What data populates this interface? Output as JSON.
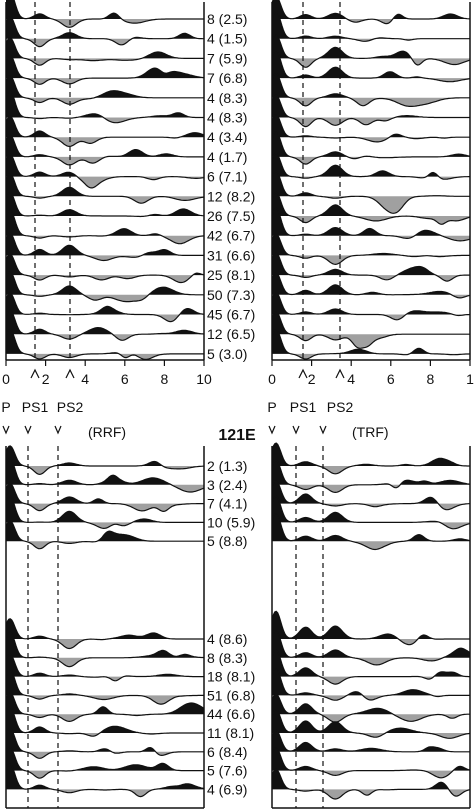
{
  "figure": {
    "station": "121E",
    "colors": {
      "positive": "#111111",
      "negative": "#a0a0a0",
      "line": "#111111"
    },
    "top_left": {
      "labels": [
        "8 (2.5)",
        "4 (1.5)",
        "7 (5.9)",
        "7 (6.8)",
        "4 (8.3)",
        "4 (8.3)",
        "4 (3.4)",
        "4 (1.7)",
        "6 (7.1)",
        "12 (8.2)",
        "26 (7.5)",
        "42 (6.7)",
        "31 (6.6)",
        "25 (8.1)",
        "50 (7.3)",
        "45 (6.7)",
        "12 (6.5)",
        "5 (3.0)"
      ],
      "xticks": [
        "0",
        "2",
        "4",
        "6",
        "8",
        "10"
      ],
      "phases": [
        "P",
        "PS1",
        "PS2"
      ]
    },
    "top_right": {
      "xticks": [
        "0",
        "2",
        "4",
        "6",
        "8",
        "1"
      ],
      "phases": [
        "P",
        "PS1",
        "PS2"
      ]
    },
    "bottom_left": {
      "tag": "(RRF)",
      "group1": [
        "2 (1.3)",
        "3 (2.4)",
        "7 (4.1)",
        "10 (5.9)",
        "5 (8.8)"
      ],
      "group2": [
        "4 (8.6)",
        "8 (8.3)",
        "18 (8.1)",
        "51 (6.8)",
        "44 (6.6)",
        "11 (8.1)",
        "6 (8.4)",
        "5 (7.6)",
        "4 (6.9)"
      ]
    },
    "bottom_right": {
      "tag": "(TRF)"
    }
  }
}
